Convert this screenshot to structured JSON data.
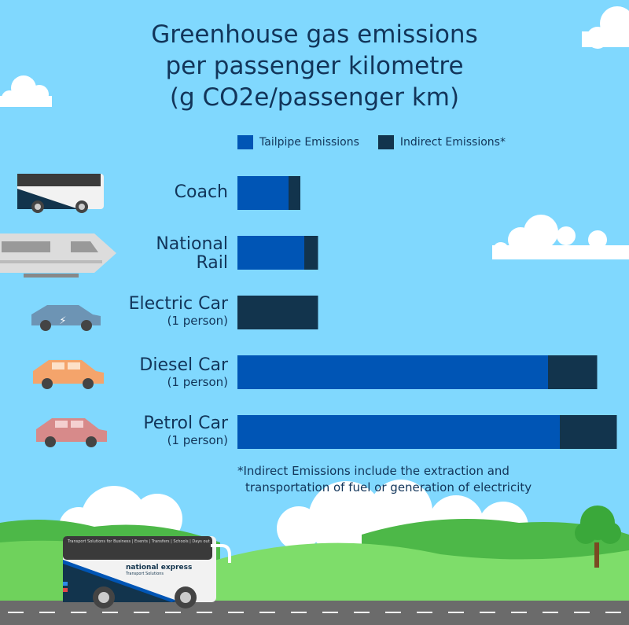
{
  "chart_data": {
    "type": "bar",
    "orientation": "horizontal",
    "stacked": true,
    "title": "Greenhouse gas emissions per passenger kilometre (g CO2e/passenger km)",
    "title_lines": [
      "Greenhouse gas emissions",
      "per passenger kilometre",
      "(g CO2e/passenger km)"
    ],
    "categories": [
      {
        "main": "Coach",
        "sub": ""
      },
      {
        "main": "National Rail",
        "main_lines": [
          "National",
          "Rail"
        ],
        "sub": ""
      },
      {
        "main": "Electric Car",
        "sub": "(1 person)"
      },
      {
        "main": "Diesel Car",
        "sub": "(1 person)"
      },
      {
        "main": "Petrol Car",
        "sub": "(1 person)"
      }
    ],
    "series": [
      {
        "name": "Tailpipe Emissions",
        "color": "#0055b5",
        "values": [
          26,
          34,
          0,
          158,
          164
        ]
      },
      {
        "name": "Indirect Emissions*",
        "color": "#12344d",
        "values": [
          6,
          7,
          41,
          25,
          29
        ]
      }
    ],
    "axis_visible": false,
    "grid": false,
    "legend_position": "top",
    "footnote_lines": [
      "*Indirect Emissions include the extraction and",
      "transportation of fuel or generation of electricity"
    ]
  },
  "bus_branding": {
    "logo": "national express",
    "logo_sub": "Transport Solutions",
    "banner": "Transport Solutions for Business | Events | Transfers | Schools | Days out"
  },
  "colors": {
    "sky": "#80d8fe",
    "title": "#12355a",
    "grass": "#5cc84a",
    "road": "#6b6b6b"
  }
}
